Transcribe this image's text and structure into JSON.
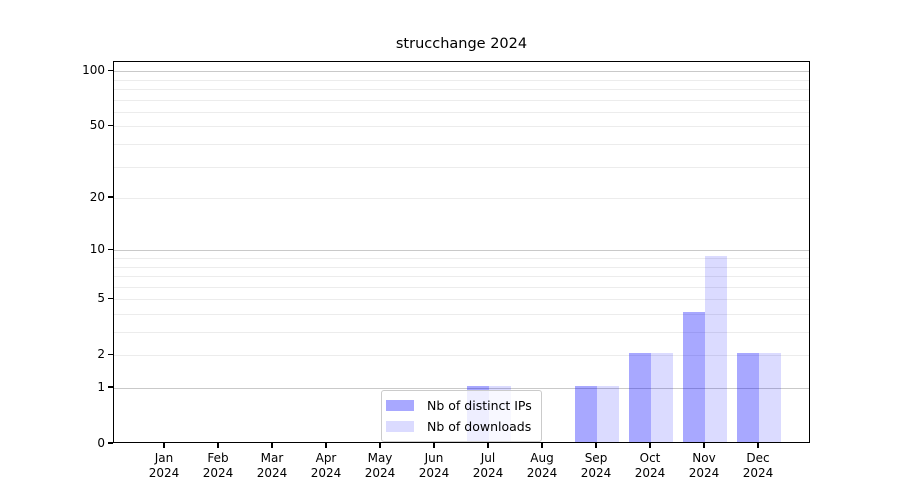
{
  "chart_data": {
    "type": "bar",
    "title": "strucchange 2024",
    "x_tick_labels": [
      {
        "month": "Jan",
        "year": "2024"
      },
      {
        "month": "Feb",
        "year": "2024"
      },
      {
        "month": "Mar",
        "year": "2024"
      },
      {
        "month": "Apr",
        "year": "2024"
      },
      {
        "month": "May",
        "year": "2024"
      },
      {
        "month": "Jun",
        "year": "2024"
      },
      {
        "month": "Jul",
        "year": "2024"
      },
      {
        "month": "Aug",
        "year": "2024"
      },
      {
        "month": "Sep",
        "year": "2024"
      },
      {
        "month": "Oct",
        "year": "2024"
      },
      {
        "month": "Nov",
        "year": "2024"
      },
      {
        "month": "Dec",
        "year": "2024"
      }
    ],
    "series": [
      {
        "name": "Nb of distinct IPs",
        "color": "rgba(0,0,255,0.34)",
        "values": [
          0,
          0,
          0,
          0,
          0,
          0,
          1,
          0,
          1,
          2,
          4,
          2
        ]
      },
      {
        "name": "Nb of downloads",
        "color": "rgba(0,0,255,0.14)",
        "values": [
          0,
          0,
          0,
          0,
          0,
          0,
          1,
          0,
          1,
          2,
          9,
          2
        ]
      }
    ],
    "y_axis": {
      "scale": "log1p",
      "ylim": [
        0,
        112
      ],
      "tick_values": [
        0,
        1,
        2,
        5,
        10,
        20,
        50,
        100
      ],
      "tick_labels": [
        "0",
        "1",
        "2",
        "5",
        "10",
        "20",
        "50",
        "100"
      ],
      "major_gridlines": [
        1,
        10,
        100
      ],
      "minor_gridlines": [
        2,
        3,
        4,
        5,
        6,
        7,
        8,
        9,
        20,
        30,
        40,
        50,
        60,
        70,
        80,
        90
      ],
      "major_grid_color": "#c9c9c9",
      "minor_grid_color": "#ececec"
    },
    "legend": {
      "position": "lower-center",
      "items": [
        "Nb of distinct IPs",
        "Nb of downloads"
      ]
    },
    "grid": true
  }
}
